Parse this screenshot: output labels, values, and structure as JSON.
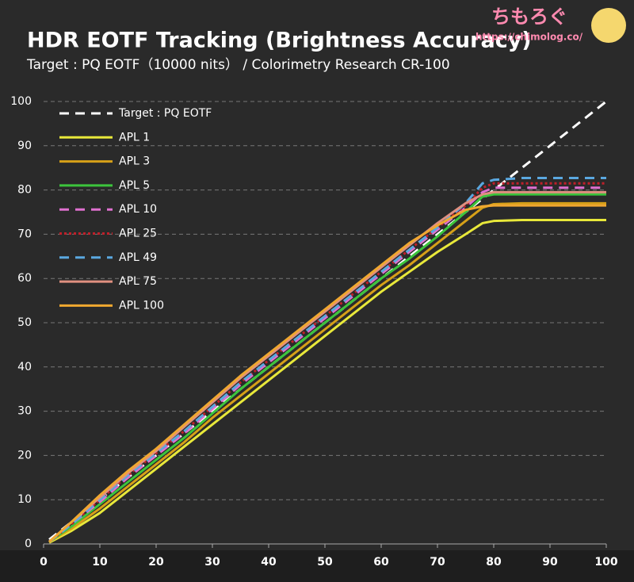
{
  "chart_data": {
    "type": "line",
    "title": "HDR EOTF Tracking (Brightness Accuracy)",
    "subtitle": "Target : PQ EOTF（10000 nits） / Colorimetry Research CR-100",
    "brand": "ちもろぐ",
    "url": "https://chimolog.co/",
    "x": [
      1,
      5,
      10,
      15,
      20,
      25,
      30,
      35,
      40,
      45,
      50,
      55,
      60,
      65,
      70,
      75,
      78,
      80,
      85,
      90,
      100
    ],
    "xlim": [
      0,
      100
    ],
    "ylim": [
      0,
      100
    ],
    "xticks": [
      0,
      10,
      20,
      30,
      40,
      50,
      60,
      70,
      80,
      90,
      100
    ],
    "yticks": [
      0,
      10,
      20,
      30,
      40,
      50,
      60,
      70,
      80,
      90,
      100
    ],
    "grid": true,
    "legend": "upper left",
    "series": [
      {
        "name": "Target : PQ EOTF",
        "color": "#ffffff",
        "dash": "dashed",
        "values": [
          1,
          5,
          10,
          15,
          20,
          25,
          30,
          35,
          40,
          45,
          50,
          55,
          60,
          65,
          70,
          75,
          78,
          80,
          85,
          90,
          100
        ]
      },
      {
        "name": "APL 1",
        "color": "#e8e83a",
        "dash": "solid",
        "values": [
          0.3,
          3,
          7,
          12,
          17,
          22,
          27,
          32,
          37,
          42,
          47,
          52,
          57,
          61.5,
          66,
          70,
          72.5,
          73,
          73.2,
          73.2,
          73.2
        ]
      },
      {
        "name": "APL 3",
        "color": "#d6a018",
        "dash": "solid",
        "values": [
          0.5,
          3.5,
          8,
          13,
          18,
          23,
          28.5,
          33.5,
          38.5,
          43.5,
          48.5,
          53.5,
          58.5,
          63,
          68,
          73,
          76,
          76.8,
          77,
          77,
          77
        ]
      },
      {
        "name": "APL 5",
        "color": "#3cc43c",
        "dash": "solid",
        "values": [
          0.5,
          4,
          9,
          14,
          19,
          24,
          29.5,
          35,
          40,
          45,
          50,
          55,
          60,
          64.5,
          69.5,
          75,
          78.5,
          79,
          79,
          79,
          79
        ]
      },
      {
        "name": "APL 10",
        "color": "#e070d0",
        "dash": "dashed",
        "values": [
          0.5,
          4.5,
          9.5,
          15,
          20,
          25,
          30.5,
          36,
          41,
          46,
          51,
          56,
          61,
          66,
          71,
          76,
          79.5,
          80.5,
          80.5,
          80.5,
          80.5
        ]
      },
      {
        "name": "APL 25",
        "color": "#c0202a",
        "dash": "dotted",
        "values": [
          0.5,
          4.5,
          10,
          15.5,
          20.5,
          25.5,
          31,
          36.5,
          41.5,
          46.5,
          51.5,
          56.5,
          61.5,
          66.5,
          71.5,
          76.5,
          80.5,
          81.5,
          81.5,
          81.5,
          81.5
        ]
      },
      {
        "name": "APL 49",
        "color": "#5aa8e0",
        "dash": "dashed",
        "values": [
          0.5,
          4.5,
          10,
          15.5,
          20.5,
          25.5,
          31,
          36.5,
          41.5,
          46.5,
          51.5,
          56.5,
          61.5,
          66.5,
          71.5,
          77,
          81.5,
          82.3,
          82.7,
          82.7,
          82.7
        ]
      },
      {
        "name": "APL 75",
        "color": "#e09080",
        "dash": "solid",
        "values": [
          0.5,
          5,
          10.5,
          16,
          21,
          26.5,
          32,
          37.5,
          42.5,
          47.5,
          52.5,
          57.5,
          62.5,
          67.5,
          72.5,
          77,
          79,
          79.5,
          79.5,
          79.5,
          79.5
        ]
      },
      {
        "name": "APL 100",
        "color": "#f0a830",
        "dash": "solid",
        "values": [
          0.5,
          5,
          11,
          16.5,
          21.5,
          27,
          32.5,
          38,
          43,
          48,
          53,
          58,
          63,
          68,
          72,
          75.5,
          76.3,
          76.5,
          76.5,
          76.5,
          76.5
        ]
      }
    ]
  }
}
